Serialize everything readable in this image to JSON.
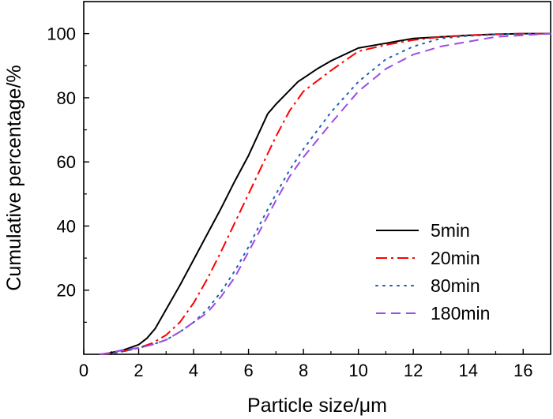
{
  "chart_data": {
    "type": "line",
    "title": "",
    "xlabel": "Particle size/μm",
    "ylabel": "Cumulative percentage/%",
    "xlim": [
      0,
      17
    ],
    "ylim": [
      0,
      110
    ],
    "xticks": [
      0,
      2,
      4,
      6,
      8,
      10,
      12,
      14,
      16
    ],
    "yticks": [
      20,
      40,
      60,
      80,
      100
    ],
    "legend_position": "right",
    "grid": false,
    "series": [
      {
        "name": "5min",
        "color": "#000000",
        "dash": "solid",
        "x": [
          0.6,
          1.0,
          1.5,
          2.0,
          2.3,
          2.6,
          3.0,
          3.5,
          4.0,
          4.5,
          5.0,
          5.5,
          6.0,
          6.7,
          7.0,
          7.8,
          8.5,
          9.0,
          10.0,
          11.0,
          12.0,
          13.0,
          14.0,
          15.0,
          16.0,
          17.0
        ],
        "y": [
          0,
          0.5,
          1.5,
          3.0,
          5.0,
          8.0,
          14.0,
          21.5,
          29.5,
          37.5,
          45.5,
          54.0,
          62.0,
          75.0,
          78.0,
          85.0,
          89.0,
          91.5,
          95.5,
          97.0,
          98.5,
          99.0,
          99.5,
          99.8,
          100.0,
          100.0
        ]
      },
      {
        "name": "20min",
        "color": "#ff0000",
        "dash": "dashdot",
        "x": [
          0.6,
          1.0,
          1.5,
          2.0,
          2.5,
          3.0,
          3.5,
          4.0,
          4.5,
          5.0,
          5.5,
          6.0,
          6.5,
          7.0,
          7.5,
          8.0,
          9.0,
          10.0,
          11.0,
          12.0,
          13.0,
          14.0,
          15.0,
          16.0,
          17.0
        ],
        "y": [
          0,
          0.3,
          1.0,
          2.0,
          3.5,
          6.0,
          10.0,
          16.0,
          23.5,
          32.0,
          41.0,
          50.0,
          59.0,
          68.0,
          76.0,
          82.0,
          88.5,
          94.5,
          96.5,
          98.0,
          99.0,
          99.5,
          99.8,
          100.0,
          100.0
        ]
      },
      {
        "name": "80min",
        "color": "#1a5fb4",
        "dash": "dotted",
        "x": [
          0.6,
          1.0,
          1.5,
          2.0,
          2.5,
          3.0,
          3.5,
          4.0,
          4.5,
          5.0,
          5.5,
          6.0,
          6.5,
          7.0,
          7.5,
          8.0,
          9.0,
          10.0,
          11.0,
          12.0,
          13.0,
          14.0,
          15.0,
          16.0,
          17.0
        ],
        "y": [
          0,
          0.3,
          1.0,
          2.0,
          3.0,
          4.5,
          7.0,
          10.0,
          14.0,
          19.5,
          26.0,
          33.5,
          42.0,
          50.0,
          57.5,
          64.0,
          75.5,
          85.0,
          92.0,
          96.0,
          98.5,
          99.3,
          99.7,
          100.0,
          100.0
        ]
      },
      {
        "name": "180min",
        "color": "#9b4ce6",
        "dash": "dashed",
        "x": [
          0.6,
          1.0,
          1.5,
          2.0,
          2.5,
          3.0,
          3.5,
          4.0,
          4.5,
          5.0,
          5.5,
          6.0,
          6.5,
          7.0,
          7.5,
          8.0,
          9.0,
          10.0,
          11.0,
          12.0,
          13.0,
          14.0,
          15.0,
          16.0,
          17.0
        ],
        "y": [
          0,
          0.5,
          1.5,
          2.0,
          3.0,
          4.5,
          7.0,
          10.0,
          13.0,
          18.0,
          24.0,
          32.0,
          40.0,
          48.0,
          55.5,
          61.5,
          72.0,
          82.0,
          89.0,
          93.5,
          96.0,
          97.5,
          99.0,
          99.5,
          100.0
        ]
      }
    ]
  }
}
